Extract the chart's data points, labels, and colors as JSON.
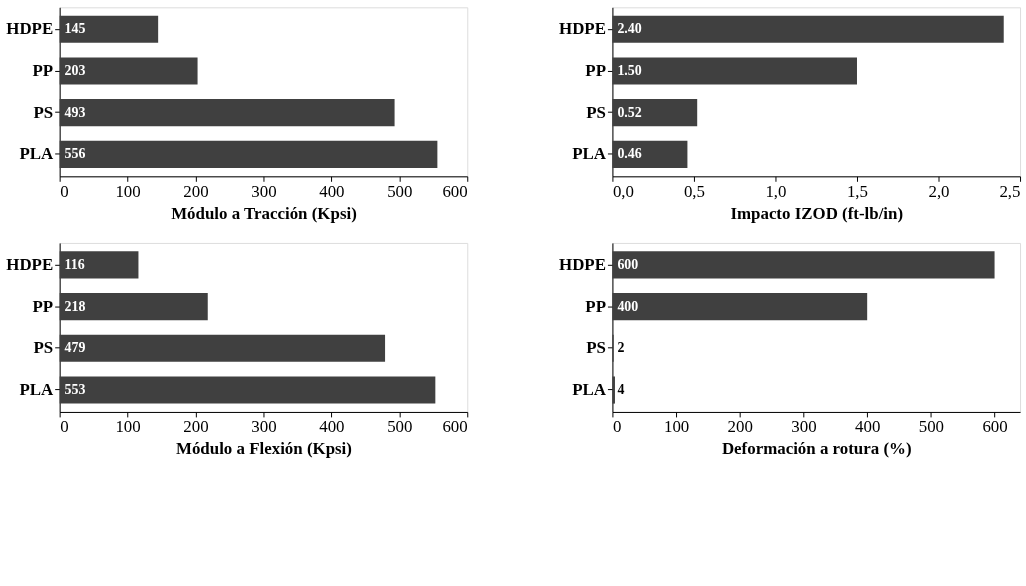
{
  "chart_data": [
    {
      "type": "bar",
      "orientation": "horizontal",
      "categories": [
        "HDPE",
        "PP",
        "PS",
        "PLA"
      ],
      "values": [
        145,
        203,
        493,
        556
      ],
      "color": "#404040",
      "xlabel": "Módulo a Tracción (Kpsi)",
      "xlim": [
        0,
        600
      ],
      "xticks": [
        0,
        100,
        200,
        300,
        400,
        500,
        600
      ],
      "data_labels": true,
      "grid": false
    },
    {
      "type": "bar",
      "orientation": "horizontal",
      "categories": [
        "HDPE",
        "PP",
        "PS",
        "PLA"
      ],
      "values": [
        2.4,
        1.5,
        0.52,
        0.46
      ],
      "value_labels": [
        "2.40",
        "1.50",
        "0.52",
        "0.46"
      ],
      "color": "#404040",
      "xlabel": "Impacto IZOD (ft-lb/in)",
      "xlim": [
        0,
        2.5
      ],
      "xticks": [
        {
          "value": 0,
          "label": "0,0"
        },
        {
          "value": 0.5,
          "label": "0,5"
        },
        {
          "value": 1,
          "label": "1,0"
        },
        {
          "value": 1.5,
          "label": "1,5"
        },
        {
          "value": 2,
          "label": "2,0"
        },
        {
          "value": 2.5,
          "label": "2,5"
        }
      ],
      "grid": false
    },
    {
      "type": "bar",
      "orientation": "horizontal",
      "categories": [
        "HDPE",
        "PP",
        "PS",
        "PLA"
      ],
      "values": [
        116,
        218,
        479,
        553
      ],
      "color": "#404040",
      "xlabel": "Módulo a Flexión (Kpsi)",
      "xlim": [
        0,
        600
      ],
      "xticks": [
        0,
        100,
        200,
        300,
        400,
        500,
        600
      ],
      "data_labels": true,
      "grid": false
    },
    {
      "type": "bar",
      "orientation": "horizontal",
      "categories": [
        "HDPE",
        "PP",
        "PS",
        "PLA"
      ],
      "values": [
        600,
        400,
        2,
        4
      ],
      "color": "#404040",
      "xlabel": "Deformación a rotura (%)",
      "xlim": [
        0,
        640
      ],
      "xticks": [
        0,
        100,
        200,
        300,
        400,
        500,
        600
      ],
      "data_labels": true,
      "grid": false
    }
  ]
}
